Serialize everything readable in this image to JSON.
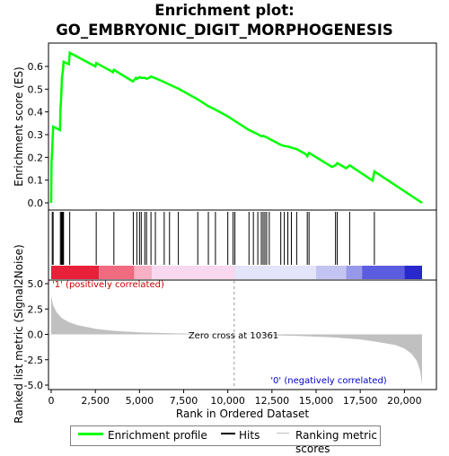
{
  "title_line1": "Enrichment plot:",
  "title_line2": "GO_EMBRYONIC_DIGIT_MORPHOGENESIS",
  "legend": {
    "items": [
      {
        "label": "Enrichment profile",
        "color": "#00ff00"
      },
      {
        "label": "Hits",
        "color": "#000000"
      },
      {
        "label": "Ranking metric scores",
        "color": "#c0c0c0"
      }
    ]
  },
  "chart_data": [
    {
      "type": "line",
      "panel": "enrichment-score",
      "ylabel": "Enrichment score (ES)",
      "ylim": [
        -0.03,
        0.7
      ],
      "yticks": [
        "0.0",
        "0.1",
        "0.2",
        "0.3",
        "0.4",
        "0.5",
        "0.6"
      ],
      "ytick_values": [
        0.0,
        0.1,
        0.2,
        0.3,
        0.4,
        0.5,
        0.6
      ],
      "xlim": [
        0,
        21500
      ],
      "grid": false,
      "line_color": "#00ff00",
      "x": [
        0,
        20,
        60,
        110,
        500,
        520,
        570,
        610,
        660,
        700,
        1000,
        1050,
        2500,
        2550,
        3500,
        3550,
        4600,
        4650,
        4800,
        4850,
        5000,
        5100,
        5300,
        5400,
        5600,
        5650,
        6300,
        6700,
        7200,
        8300,
        8900,
        9300,
        10000,
        10300,
        11200,
        11700,
        11900,
        12000,
        12200,
        13000,
        13200,
        13400,
        13600,
        13900,
        14400,
        14500,
        14600,
        15900,
        16100,
        16200,
        16700,
        16900,
        18200,
        18300,
        21000
      ],
      "y": [
        0.0,
        0.18,
        0.24,
        0.335,
        0.32,
        0.4,
        0.47,
        0.55,
        0.58,
        0.62,
        0.61,
        0.66,
        0.6,
        0.615,
        0.575,
        0.585,
        0.535,
        0.535,
        0.55,
        0.545,
        0.553,
        0.55,
        0.55,
        0.545,
        0.552,
        0.556,
        0.535,
        0.52,
        0.502,
        0.455,
        0.425,
        0.41,
        0.38,
        0.365,
        0.32,
        0.302,
        0.293,
        0.295,
        0.288,
        0.255,
        0.25,
        0.248,
        0.243,
        0.236,
        0.215,
        0.205,
        0.22,
        0.158,
        0.165,
        0.175,
        0.152,
        0.165,
        0.098,
        0.138,
        0.0
      ]
    },
    {
      "type": "scatter",
      "panel": "hits",
      "marks": "vertical ticks",
      "x": [
        60,
        110,
        520,
        570,
        610,
        660,
        700,
        1050,
        2550,
        3550,
        4650,
        4850,
        5000,
        5100,
        5300,
        5400,
        5650,
        5900,
        6400,
        6700,
        7200,
        8300,
        8900,
        9300,
        10000,
        10300,
        10400,
        11200,
        11450,
        11700,
        11900,
        12000,
        12100,
        12200,
        12350,
        13000,
        13200,
        13400,
        13600,
        13900,
        14500,
        14600,
        16100,
        16200,
        16900,
        18300
      ]
    },
    {
      "type": "area",
      "panel": "ranked-list-metric",
      "ylabel": "Ranked list metric (Signal2Noise)",
      "xlabel": "Rank in Ordered Dataset",
      "ylim": [
        -5.3,
        5.3
      ],
      "yticks": [
        "-5.0",
        "-2.5",
        "0.0",
        "2.5",
        "5.0"
      ],
      "ytick_values": [
        -5.0,
        -2.5,
        0.0,
        2.5,
        5.0
      ],
      "xticks": [
        "0",
        "2,500",
        "5,000",
        "7,500",
        "10,000",
        "12,500",
        "15,000",
        "17,500",
        "20,000"
      ],
      "xtick_values": [
        0,
        2500,
        5000,
        7500,
        10000,
        12500,
        15000,
        17500,
        20000
      ],
      "xlim": [
        0,
        21500
      ],
      "fill_color": "#c0c0c0",
      "x": [
        0,
        100,
        300,
        600,
        1000,
        1500,
        2500,
        3500,
        5000,
        7000,
        9000,
        10361,
        12000,
        14000,
        16000,
        17500,
        18500,
        19500,
        20000,
        20400,
        20700,
        20900,
        21000
      ],
      "y": [
        3.8,
        2.9,
        2.2,
        1.6,
        1.2,
        0.9,
        0.55,
        0.35,
        0.2,
        0.1,
        0.04,
        0.0,
        -0.06,
        -0.15,
        -0.3,
        -0.5,
        -0.75,
        -1.05,
        -1.4,
        -1.9,
        -2.6,
        -3.6,
        -5.0
      ],
      "annotations": {
        "zero_cross": "Zero cross at 10361",
        "zero_cross_x": 10361,
        "positive": "'1' (positively correlated)",
        "negative": "'0' (negatively correlated)"
      }
    },
    {
      "type": "heatmap",
      "panel": "rank-color-bar",
      "segments": [
        {
          "x0": 0,
          "x1": 2700,
          "color": "#e8203a"
        },
        {
          "x0": 2700,
          "x1": 4700,
          "color": "#f06a80"
        },
        {
          "x0": 4700,
          "x1": 5700,
          "color": "#f7b0c4"
        },
        {
          "x0": 5700,
          "x1": 10400,
          "color": "#f7d8ee"
        },
        {
          "x0": 10400,
          "x1": 15000,
          "color": "#e4e4fa"
        },
        {
          "x0": 15000,
          "x1": 16700,
          "color": "#c4c4f2"
        },
        {
          "x0": 16700,
          "x1": 17600,
          "color": "#9898ea"
        },
        {
          "x0": 17600,
          "x1": 20000,
          "color": "#5c5ce0"
        },
        {
          "x0": 20000,
          "x1": 21000,
          "color": "#2828cc"
        }
      ]
    }
  ]
}
